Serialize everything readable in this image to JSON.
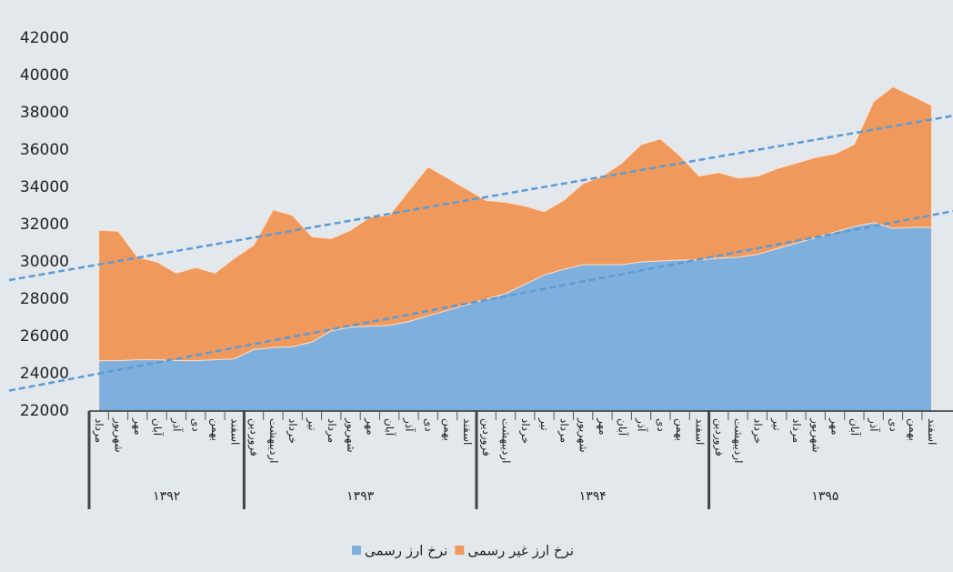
{
  "chart_data": {
    "type": "area",
    "groups": [
      {
        "label": "۱۳۹۲",
        "categories": [
          "مرداد",
          "شهریور",
          "مهر",
          "آبان",
          "آذر",
          "دی",
          "بهمن",
          "اسفند"
        ]
      },
      {
        "label": "۱۳۹۳",
        "categories": [
          "فروردین",
          "اردیبهشت",
          "خرداد",
          "تیر",
          "مرداد",
          "شهریور",
          "مهر",
          "آبان",
          "آذر",
          "دی",
          "بهمن",
          "اسفند"
        ]
      },
      {
        "label": "۱۳۹۴",
        "categories": [
          "فروردین",
          "اردیبهشت",
          "خرداد",
          "تیر",
          "مرداد",
          "شهریور",
          "مهر",
          "آبان",
          "آذر",
          "دی",
          "بهمن",
          "اسفند"
        ]
      },
      {
        "label": "۱۳۹۵",
        "categories": [
          "فروردین",
          "اردیبهشت",
          "خرداد",
          "تیر",
          "مرداد",
          "شهریور",
          "مهر",
          "آبان",
          "آذر",
          "دی",
          "بهمن",
          "اسفند"
        ]
      }
    ],
    "series": [
      {
        "name": "نرخ ارز غیر رسمی",
        "color": "#f0995c",
        "values": [
          31700,
          31650,
          30250,
          30000,
          29400,
          29700,
          29400,
          30200,
          30900,
          32800,
          32500,
          31350,
          31250,
          31700,
          32400,
          32500,
          33800,
          35100,
          34500,
          33900,
          33300,
          33200,
          33000,
          32700,
          33300,
          34200,
          34600,
          35300,
          36300,
          36600,
          35700,
          34600,
          34800,
          34500,
          34600,
          35000,
          35300,
          35600,
          35800,
          36300,
          38600,
          39400,
          38900,
          38400
        ]
      },
      {
        "name": "نرخ ارز رسمی",
        "color": "#7fb0dd",
        "values": [
          24700,
          24700,
          24750,
          24750,
          24700,
          24700,
          24750,
          24800,
          25300,
          25400,
          25450,
          25700,
          26300,
          26500,
          26550,
          26600,
          26800,
          27100,
          27400,
          27700,
          28000,
          28300,
          28800,
          29300,
          29600,
          29850,
          29850,
          29850,
          30000,
          30050,
          30100,
          30100,
          30200,
          30250,
          30400,
          30700,
          31000,
          31300,
          31600,
          31900,
          32100,
          31800,
          31850,
          31850
        ]
      }
    ],
    "trendline": true,
    "trendline_color": "#5b9bd5",
    "ylim": [
      22000,
      42000
    ],
    "yticks": [
      22000,
      24000,
      26000,
      28000,
      30000,
      32000,
      34000,
      36000,
      38000,
      40000,
      42000
    ],
    "legend": "bottom"
  }
}
